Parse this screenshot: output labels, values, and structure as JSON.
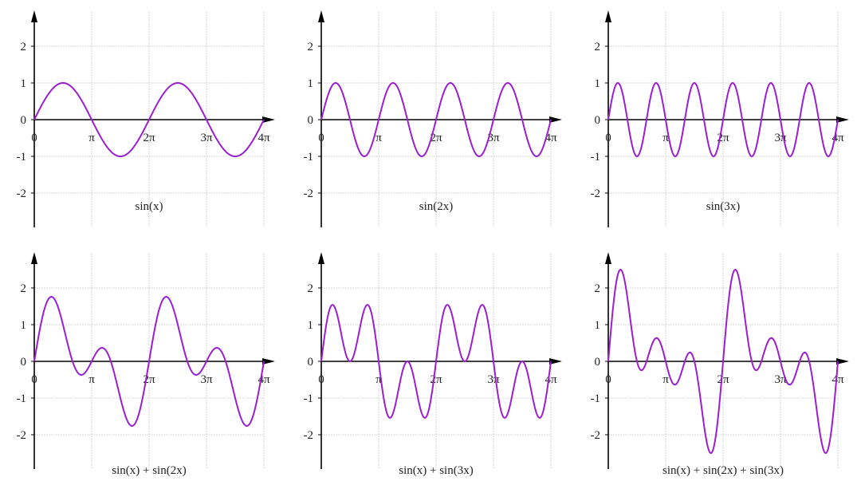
{
  "chart_data": [
    {
      "type": "line",
      "title": "sin(x)",
      "frequencies": [
        1
      ],
      "xlim": [
        0,
        12.566
      ],
      "ylim": [
        -2.8,
        2.8
      ],
      "xticks": [
        "0",
        "π",
        "2π",
        "3π",
        "4π"
      ],
      "yticks": [
        "2",
        "1",
        "0",
        "-1",
        "-2"
      ],
      "grid": true
    },
    {
      "type": "line",
      "title": "sin(2x)",
      "frequencies": [
        2
      ],
      "xlim": [
        0,
        12.566
      ],
      "ylim": [
        -2.8,
        2.8
      ],
      "xticks": [
        "0",
        "π",
        "2π",
        "3π",
        "4π"
      ],
      "yticks": [
        "2",
        "1",
        "0",
        "-1",
        "-2"
      ],
      "grid": true
    },
    {
      "type": "line",
      "title": "sin(3x)",
      "frequencies": [
        3
      ],
      "xlim": [
        0,
        12.566
      ],
      "ylim": [
        -2.8,
        2.8
      ],
      "xticks": [
        "0",
        "π",
        "2π",
        "3π",
        "4π"
      ],
      "yticks": [
        "2",
        "1",
        "0",
        "-1",
        "-2"
      ],
      "grid": true
    },
    {
      "type": "line",
      "title": "sin(x) + sin(2x)",
      "frequencies": [
        1,
        2
      ],
      "xlim": [
        0,
        12.566
      ],
      "ylim": [
        -2.8,
        2.8
      ],
      "xticks": [
        "0",
        "π",
        "2π",
        "3π",
        "4π"
      ],
      "yticks": [
        "2",
        "1",
        "0",
        "-1",
        "-2"
      ],
      "grid": true
    },
    {
      "type": "line",
      "title": "sin(x) + sin(3x)",
      "frequencies": [
        1,
        3
      ],
      "xlim": [
        0,
        12.566
      ],
      "ylim": [
        -2.8,
        2.8
      ],
      "xticks": [
        "0",
        "π",
        "2π",
        "3π",
        "4π"
      ],
      "yticks": [
        "2",
        "1",
        "0",
        "-1",
        "-2"
      ],
      "grid": true
    },
    {
      "type": "line",
      "title": "sin(x) + sin(2x) + sin(3x)",
      "frequencies": [
        1,
        2,
        3
      ],
      "xlim": [
        0,
        12.566
      ],
      "ylim": [
        -2.8,
        2.8
      ],
      "xticks": [
        "0",
        "π",
        "2π",
        "3π",
        "4π"
      ],
      "yticks": [
        "2",
        "1",
        "0",
        "-1",
        "-2"
      ],
      "grid": true
    }
  ],
  "colors": {
    "curve": "#9a1fd0",
    "axis": "#000000",
    "grid": "#cccccc"
  }
}
